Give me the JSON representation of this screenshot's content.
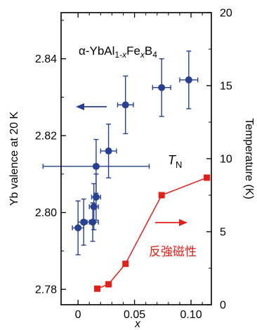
{
  "chart_data": {
    "type": "scatter",
    "title": "α-YbAl1-xFexB4",
    "title_parts": [
      "α-YbAl",
      "1-",
      "x",
      "Fe",
      "x",
      "B",
      "4"
    ],
    "xlabel": "x",
    "xlim": [
      -0.015,
      0.118
    ],
    "xticks": [
      0,
      0.05,
      0.1
    ],
    "xtick_labels": [
      "0",
      "0.05",
      "0.10"
    ],
    "ylabel_left": "Yb valence at 20 K",
    "ylim_left": [
      2.776,
      2.852
    ],
    "yticks_left": [
      2.78,
      2.8,
      2.82,
      2.84
    ],
    "ytick_labels_left": [
      "2.78",
      "2.80",
      "2.82",
      "2.84"
    ],
    "ylabel_right": "Temperature (K)",
    "ylim_right": [
      0,
      20
    ],
    "yticks_right": [
      0,
      5,
      10,
      15,
      20
    ],
    "ytick_labels_right": [
      "0",
      "5",
      "10",
      "15",
      "20"
    ],
    "grid": false,
    "series": [
      {
        "axis": "left",
        "color": "#27408f",
        "marker": "circle",
        "errorbars": true,
        "points": [
          {
            "x": 0.0,
            "y": 2.796,
            "xerr": 0.005,
            "yerr": 0.007
          },
          {
            "x": 0.005,
            "y": 2.7975,
            "xerr": 0.005,
            "yerr": 0.006
          },
          {
            "x": 0.013,
            "y": 2.7975,
            "xerr": 0.005,
            "yerr": 0.005
          },
          {
            "x": 0.014,
            "y": 2.8015,
            "xerr": 0.004,
            "yerr": 0.006
          },
          {
            "x": 0.016,
            "y": 2.804,
            "xerr": 0.004,
            "yerr": 0.006
          },
          {
            "x": 0.016,
            "y": 2.812,
            "xerr": 0.047,
            "yerr": 0.007
          },
          {
            "x": 0.027,
            "y": 2.816,
            "xerr": 0.007,
            "yerr": 0.007
          },
          {
            "x": 0.042,
            "y": 2.828,
            "xerr": 0.007,
            "yerr": 0.0075
          },
          {
            "x": 0.074,
            "y": 2.8325,
            "xerr": 0.008,
            "yerr": 0.0075
          },
          {
            "x": 0.098,
            "y": 2.8345,
            "xerr": 0.008,
            "yerr": 0.0075
          }
        ]
      },
      {
        "name": "T_N",
        "axis": "right",
        "color": "#e0201b",
        "marker": "square",
        "line": true,
        "points": [
          {
            "x": 0.017,
            "y": 1.1
          },
          {
            "x": 0.027,
            "y": 1.4
          },
          {
            "x": 0.042,
            "y": 2.8
          },
          {
            "x": 0.074,
            "y": 7.5
          },
          {
            "x": 0.114,
            "y": 8.7
          }
        ]
      }
    ],
    "annotations": {
      "tn_label": "T",
      "tn_subscript": "N",
      "japanese_label": "反強磁性"
    }
  }
}
